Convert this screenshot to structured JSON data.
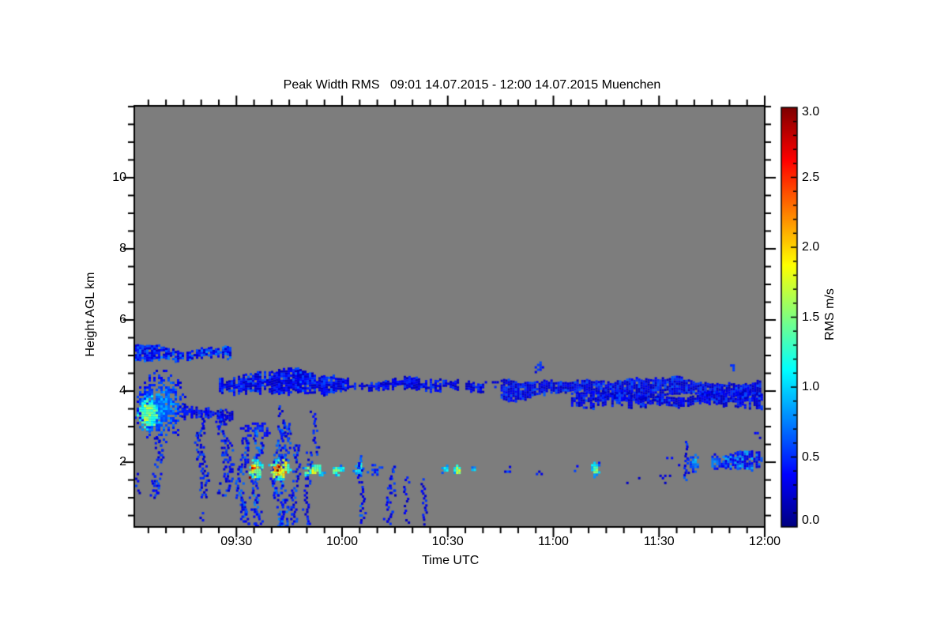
{
  "title": "Peak Width RMS   09:01 14.07.2015 - 12:00 14.07.2015 Muenchen",
  "chart_data": {
    "type": "heatmap",
    "title": "Peak Width RMS   09:01 14.07.2015 - 12:00 14.07.2015 Muenchen",
    "quantity": "Peak Width RMS",
    "time_start": "09:01 14.07.2015",
    "time_end": "12:00 14.07.2015",
    "station": "Muenchen",
    "xlabel": "Time UTC",
    "ylabel": "Height AGL km",
    "colorbar_label": "RMS m/s",
    "colormap": "jet",
    "background_color": "#7d7d7d",
    "frame_color": "#000000",
    "x_range_minutes_after_0900": [
      1,
      180
    ],
    "x_ticks": [
      {
        "label": "09:30",
        "minute": 30
      },
      {
        "label": "10:00",
        "minute": 60
      },
      {
        "label": "10:30",
        "minute": 90
      },
      {
        "label": "11:00",
        "minute": 120
      },
      {
        "label": "11:30",
        "minute": 150
      },
      {
        "label": "12:00",
        "minute": 180
      }
    ],
    "x_minor_tick_every_minutes": 5,
    "ylim_km": [
      0.18,
      12.02
    ],
    "y_ticks": [
      {
        "label": "2",
        "km": 2
      },
      {
        "label": "4",
        "km": 4
      },
      {
        "label": "6",
        "km": 6
      },
      {
        "label": "8",
        "km": 8
      },
      {
        "label": "10",
        "km": 10
      }
    ],
    "y_minor_tick_every_km": 0.5,
    "colorbar_range": [
      0.0,
      3.0
    ],
    "colorbar_ticks": [
      {
        "label": "3.0",
        "value": 3.0
      },
      {
        "label": "2.5",
        "value": 2.5
      },
      {
        "label": "2.0",
        "value": 2.0
      },
      {
        "label": "1.5",
        "value": 1.5
      },
      {
        "label": "1.0",
        "value": 1.0
      },
      {
        "label": "0.5",
        "value": 0.5
      },
      {
        "label": "0.0",
        "value": 0.0
      }
    ],
    "colorbar_minor_tick_every": 0.1,
    "features": [
      {
        "name": "cloud-band-5km",
        "kind": "band",
        "t": [
          1,
          28
        ],
        "h": [
          4.88,
          5.28
        ],
        "rms": 0.5,
        "density": 0.85
      },
      {
        "name": "left-plume",
        "kind": "blob",
        "t": [
          1,
          15.5
        ],
        "h": [
          2.6,
          4.6
        ],
        "rms": 0.55,
        "density": 0.8
      },
      {
        "name": "left-plume-core",
        "kind": "blob",
        "t": [
          1,
          8.5
        ],
        "h": [
          2.85,
          3.95
        ],
        "rms": 1.15,
        "density": 0.9
      },
      {
        "name": "plume-fall-streak",
        "kind": "streak",
        "t": [
          5.5,
          8.5
        ],
        "h": [
          1.0,
          2.7
        ],
        "rms": 0.45,
        "density": 0.7
      },
      {
        "name": "left-edge-dashes",
        "kind": "streak",
        "t": [
          1.5,
          3.0
        ],
        "h": [
          1.15,
          1.7
        ],
        "rms": 0.4,
        "density": 0.6
      },
      {
        "name": "fragment-3p4km",
        "kind": "band",
        "t": [
          15,
          29
        ],
        "h": [
          3.25,
          3.55
        ],
        "rms": 0.35,
        "density": 0.5
      },
      {
        "name": "blob-3p5km",
        "kind": "blob",
        "t": [
          13,
          18
        ],
        "h": [
          3.28,
          3.65
        ],
        "rms": 0.4,
        "density": 0.7
      },
      {
        "name": "streak-0918",
        "kind": "streak",
        "t": [
          18.5,
          21.5
        ],
        "h": [
          1.0,
          3.45
        ],
        "rms": 0.45,
        "density": 0.7
      },
      {
        "name": "low-dot-0920",
        "kind": "dots",
        "t": [
          19.5,
          21
        ],
        "h": [
          0.35,
          0.6
        ],
        "rms": 0.4,
        "density": 0.3
      },
      {
        "name": "streak-0925",
        "kind": "streak",
        "t": [
          24.5,
          28.5
        ],
        "h": [
          1.1,
          3.5
        ],
        "rms": 0.45,
        "density": 0.7
      },
      {
        "name": "band-4km-left",
        "kind": "band",
        "t": [
          25,
          62
        ],
        "h": [
          3.95,
          4.52
        ],
        "rms": 0.42,
        "density": 0.9
      },
      {
        "name": "band-4km-mid",
        "kind": "band",
        "t": [
          62,
          88
        ],
        "h": [
          4.02,
          4.33
        ],
        "rms": 0.38,
        "density": 0.65
      },
      {
        "name": "band-4km-seg1",
        "kind": "band",
        "t": [
          88.5,
          93
        ],
        "h": [
          4.05,
          4.3
        ],
        "rms": 0.38,
        "density": 0.8
      },
      {
        "name": "band-4km-seg2",
        "kind": "band",
        "t": [
          95,
          100
        ],
        "h": [
          4.05,
          4.32
        ],
        "rms": 0.38,
        "density": 0.8
      },
      {
        "name": "band-4km-sparse",
        "kind": "dots",
        "t": [
          100.5,
          104.5
        ],
        "h": [
          4.1,
          4.28
        ],
        "rms": 0.35,
        "density": 0.25
      },
      {
        "name": "band-4km-right",
        "kind": "band",
        "t": [
          105,
          179
        ],
        "h": [
          3.85,
          4.33
        ],
        "rms": 0.42,
        "density": 0.95
      },
      {
        "name": "band-4km-right-low",
        "kind": "band",
        "t": [
          125,
          179
        ],
        "h": [
          3.58,
          3.95
        ],
        "rms": 0.4,
        "density": 0.7
      },
      {
        "name": "under-band-arc",
        "kind": "blob",
        "t": [
          31,
          40
        ],
        "h": [
          2.65,
          3.25
        ],
        "rms": 0.4,
        "density": 0.55
      },
      {
        "name": "precip-streak-0930",
        "kind": "streak",
        "t": [
          30,
          33
        ],
        "h": [
          0.25,
          2.7
        ],
        "rms": 0.5,
        "density": 0.75
      },
      {
        "name": "precip-streak-0934",
        "kind": "streak",
        "t": [
          34,
          37
        ],
        "h": [
          0.2,
          2.9
        ],
        "rms": 0.55,
        "density": 0.8
      },
      {
        "name": "hotspot-0935",
        "kind": "blob",
        "t": [
          33,
          37.5
        ],
        "h": [
          1.5,
          2.15
        ],
        "rms": 1.3,
        "density": 0.85
      },
      {
        "name": "hotspot-0935-core",
        "kind": "dots",
        "t": [
          33.5,
          35.5
        ],
        "h": [
          1.6,
          2.0
        ],
        "rms": 2.2,
        "density": 0.35
      },
      {
        "name": "precip-streak-0940",
        "kind": "streak",
        "t": [
          40,
          44.5
        ],
        "h": [
          0.2,
          3.1
        ],
        "rms": 0.55,
        "density": 0.8
      },
      {
        "name": "upper-strand-0941",
        "kind": "streak",
        "t": [
          41.5,
          43.5
        ],
        "h": [
          2.8,
          3.6
        ],
        "rms": 0.45,
        "density": 0.55
      },
      {
        "name": "hotspot-0941",
        "kind": "blob",
        "t": [
          39,
          45.5
        ],
        "h": [
          1.5,
          2.15
        ],
        "rms": 1.5,
        "density": 0.9
      },
      {
        "name": "hotspot-0941-core",
        "kind": "blob",
        "t": [
          40,
          43
        ],
        "h": [
          1.68,
          2.0
        ],
        "rms": 2.3,
        "density": 0.75
      },
      {
        "name": "hotspot-0941-red",
        "kind": "dots",
        "t": [
          40.5,
          42.5
        ],
        "h": [
          1.75,
          1.97
        ],
        "rms": 2.75,
        "density": 0.4
      },
      {
        "name": "precip-streak-0945",
        "kind": "streak",
        "t": [
          45,
          47.5
        ],
        "h": [
          0.25,
          2.5
        ],
        "rms": 0.5,
        "density": 0.7
      },
      {
        "name": "precip-streak-0949",
        "kind": "streak",
        "t": [
          49,
          51
        ],
        "h": [
          0.3,
          2.3
        ],
        "rms": 0.45,
        "density": 0.6
      },
      {
        "name": "upper-strand-0951",
        "kind": "streak",
        "t": [
          51,
          53
        ],
        "h": [
          2.2,
          3.45
        ],
        "rms": 0.45,
        "density": 0.6
      },
      {
        "name": "patch-0948",
        "kind": "blob",
        "t": [
          48,
          55.5
        ],
        "h": [
          1.6,
          2.0
        ],
        "rms": 1.1,
        "density": 0.8
      },
      {
        "name": "patch-0956",
        "kind": "blob",
        "t": [
          56,
          60.5
        ],
        "h": [
          1.62,
          2.0
        ],
        "rms": 1.0,
        "density": 0.8
      },
      {
        "name": "patch-1003",
        "kind": "blob",
        "t": [
          63,
          66
        ],
        "h": [
          1.6,
          2.05
        ],
        "rms": 0.9,
        "density": 0.8
      },
      {
        "name": "streak-1005",
        "kind": "streak",
        "t": [
          64.5,
          66
        ],
        "h": [
          0.2,
          2.2
        ],
        "rms": 0.5,
        "density": 0.7
      },
      {
        "name": "dots-1007",
        "kind": "dots",
        "t": [
          67,
          71.5
        ],
        "h": [
          1.65,
          1.95
        ],
        "rms": 0.5,
        "density": 0.3
      },
      {
        "name": "streak-1012",
        "kind": "streak",
        "t": [
          72,
          75
        ],
        "h": [
          0.25,
          1.9
        ],
        "rms": 0.45,
        "density": 0.55
      },
      {
        "name": "streak-1017",
        "kind": "streak",
        "t": [
          77.5,
          79
        ],
        "h": [
          0.3,
          1.6
        ],
        "rms": 0.4,
        "density": 0.5
      },
      {
        "name": "streak-1022",
        "kind": "streak",
        "t": [
          82,
          83.5
        ],
        "h": [
          0.25,
          1.55
        ],
        "rms": 0.45,
        "density": 0.6
      },
      {
        "name": "patch-1028",
        "kind": "blob",
        "t": [
          87.5,
          90.5
        ],
        "h": [
          1.7,
          2.0
        ],
        "rms": 0.9,
        "density": 0.8
      },
      {
        "name": "patch-1031",
        "kind": "blob",
        "t": [
          91,
          94
        ],
        "h": [
          1.65,
          2.0
        ],
        "rms": 1.15,
        "density": 0.8
      },
      {
        "name": "patch-1036",
        "kind": "blob",
        "t": [
          96,
          98.5
        ],
        "h": [
          1.7,
          1.95
        ],
        "rms": 0.8,
        "density": 0.75
      },
      {
        "name": "dots-1046",
        "kind": "dots",
        "t": [
          106,
          108
        ],
        "h": [
          1.73,
          1.9
        ],
        "rms": 0.5,
        "density": 0.35
      },
      {
        "name": "cloudlet-1054",
        "kind": "blob",
        "t": [
          114,
          117
        ],
        "h": [
          4.55,
          4.9
        ],
        "rms": 0.5,
        "density": 0.75
      },
      {
        "name": "dots-1055",
        "kind": "dots",
        "t": [
          115,
          117
        ],
        "h": [
          1.7,
          1.9
        ],
        "rms": 0.45,
        "density": 0.3
      },
      {
        "name": "dash-1105",
        "kind": "dots",
        "t": [
          125.8,
          126.8
        ],
        "h": [
          1.72,
          1.92
        ],
        "rms": 0.45,
        "density": 0.4
      },
      {
        "name": "blob-1110",
        "kind": "blob",
        "t": [
          130,
          133.2
        ],
        "h": [
          1.6,
          2.08
        ],
        "rms": 1.0,
        "density": 0.85
      },
      {
        "name": "specks-1120",
        "kind": "dots",
        "t": [
          140,
          153
        ],
        "h": [
          1.45,
          1.65
        ],
        "rms": 0.35,
        "density": 0.12
      },
      {
        "name": "specks-1132",
        "kind": "dots",
        "t": [
          152,
          157
        ],
        "h": [
          1.9,
          2.15
        ],
        "rms": 0.45,
        "density": 0.2
      },
      {
        "name": "streak-1137",
        "kind": "streak",
        "t": [
          157,
          158.5
        ],
        "h": [
          1.5,
          2.6
        ],
        "rms": 0.45,
        "density": 0.65
      },
      {
        "name": "patch-1139",
        "kind": "blob",
        "t": [
          158,
          162
        ],
        "h": [
          1.7,
          2.3
        ],
        "rms": 0.6,
        "density": 0.8
      },
      {
        "name": "patch-1144",
        "kind": "blob",
        "t": [
          163.5,
          168
        ],
        "h": [
          1.8,
          2.25
        ],
        "rms": 0.55,
        "density": 0.8
      },
      {
        "name": "band-2km-right",
        "kind": "band",
        "t": [
          168,
          179
        ],
        "h": [
          1.85,
          2.3
        ],
        "rms": 0.6,
        "density": 0.85
      },
      {
        "name": "cloudlet-1150",
        "kind": "dots",
        "t": [
          169.5,
          171.5
        ],
        "h": [
          4.6,
          4.82
        ],
        "rms": 0.45,
        "density": 0.4
      },
      {
        "name": "specks-1158",
        "kind": "dots",
        "t": [
          177,
          179
        ],
        "h": [
          2.6,
          2.85
        ],
        "rms": 0.4,
        "density": 0.25
      }
    ]
  }
}
